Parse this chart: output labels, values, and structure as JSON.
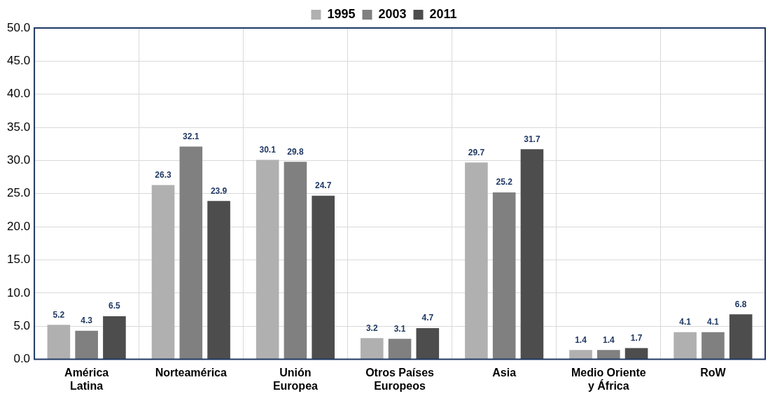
{
  "chart_data": {
    "type": "bar",
    "categories": [
      "América Latina",
      "Norteamérica",
      "Unión Europea",
      "Otros Países Europeos",
      "Asia",
      "Medio Oriente y África",
      "RoW"
    ],
    "series": [
      {
        "name": "1995",
        "color": "#b0b0b0",
        "values": [
          5.2,
          26.3,
          30.1,
          3.2,
          29.7,
          1.4,
          4.1
        ]
      },
      {
        "name": "2003",
        "color": "#808080",
        "values": [
          4.3,
          32.1,
          29.8,
          3.1,
          25.2,
          1.4,
          4.1
        ]
      },
      {
        "name": "2011",
        "color": "#4d4d4d",
        "values": [
          6.5,
          23.9,
          24.7,
          4.7,
          31.7,
          1.7,
          6.8
        ]
      }
    ],
    "ylim": [
      0,
      50
    ],
    "yticks": [
      {
        "value": 0,
        "label": "0.0"
      },
      {
        "value": 5,
        "label": "5.0"
      },
      {
        "value": 10,
        "label": "10.0"
      },
      {
        "value": 15,
        "label": "15.0"
      },
      {
        "value": 20,
        "label": "20.0"
      },
      {
        "value": 25,
        "label": "25.0"
      },
      {
        "value": 30,
        "label": "30.0"
      },
      {
        "value": 35,
        "label": "35.0"
      },
      {
        "value": 40,
        "label": "40.0"
      },
      {
        "value": 45,
        "label": "45.0"
      },
      {
        "value": 50,
        "label": "50.0"
      }
    ],
    "grid": true,
    "legend": "top",
    "data_labels": true
  }
}
